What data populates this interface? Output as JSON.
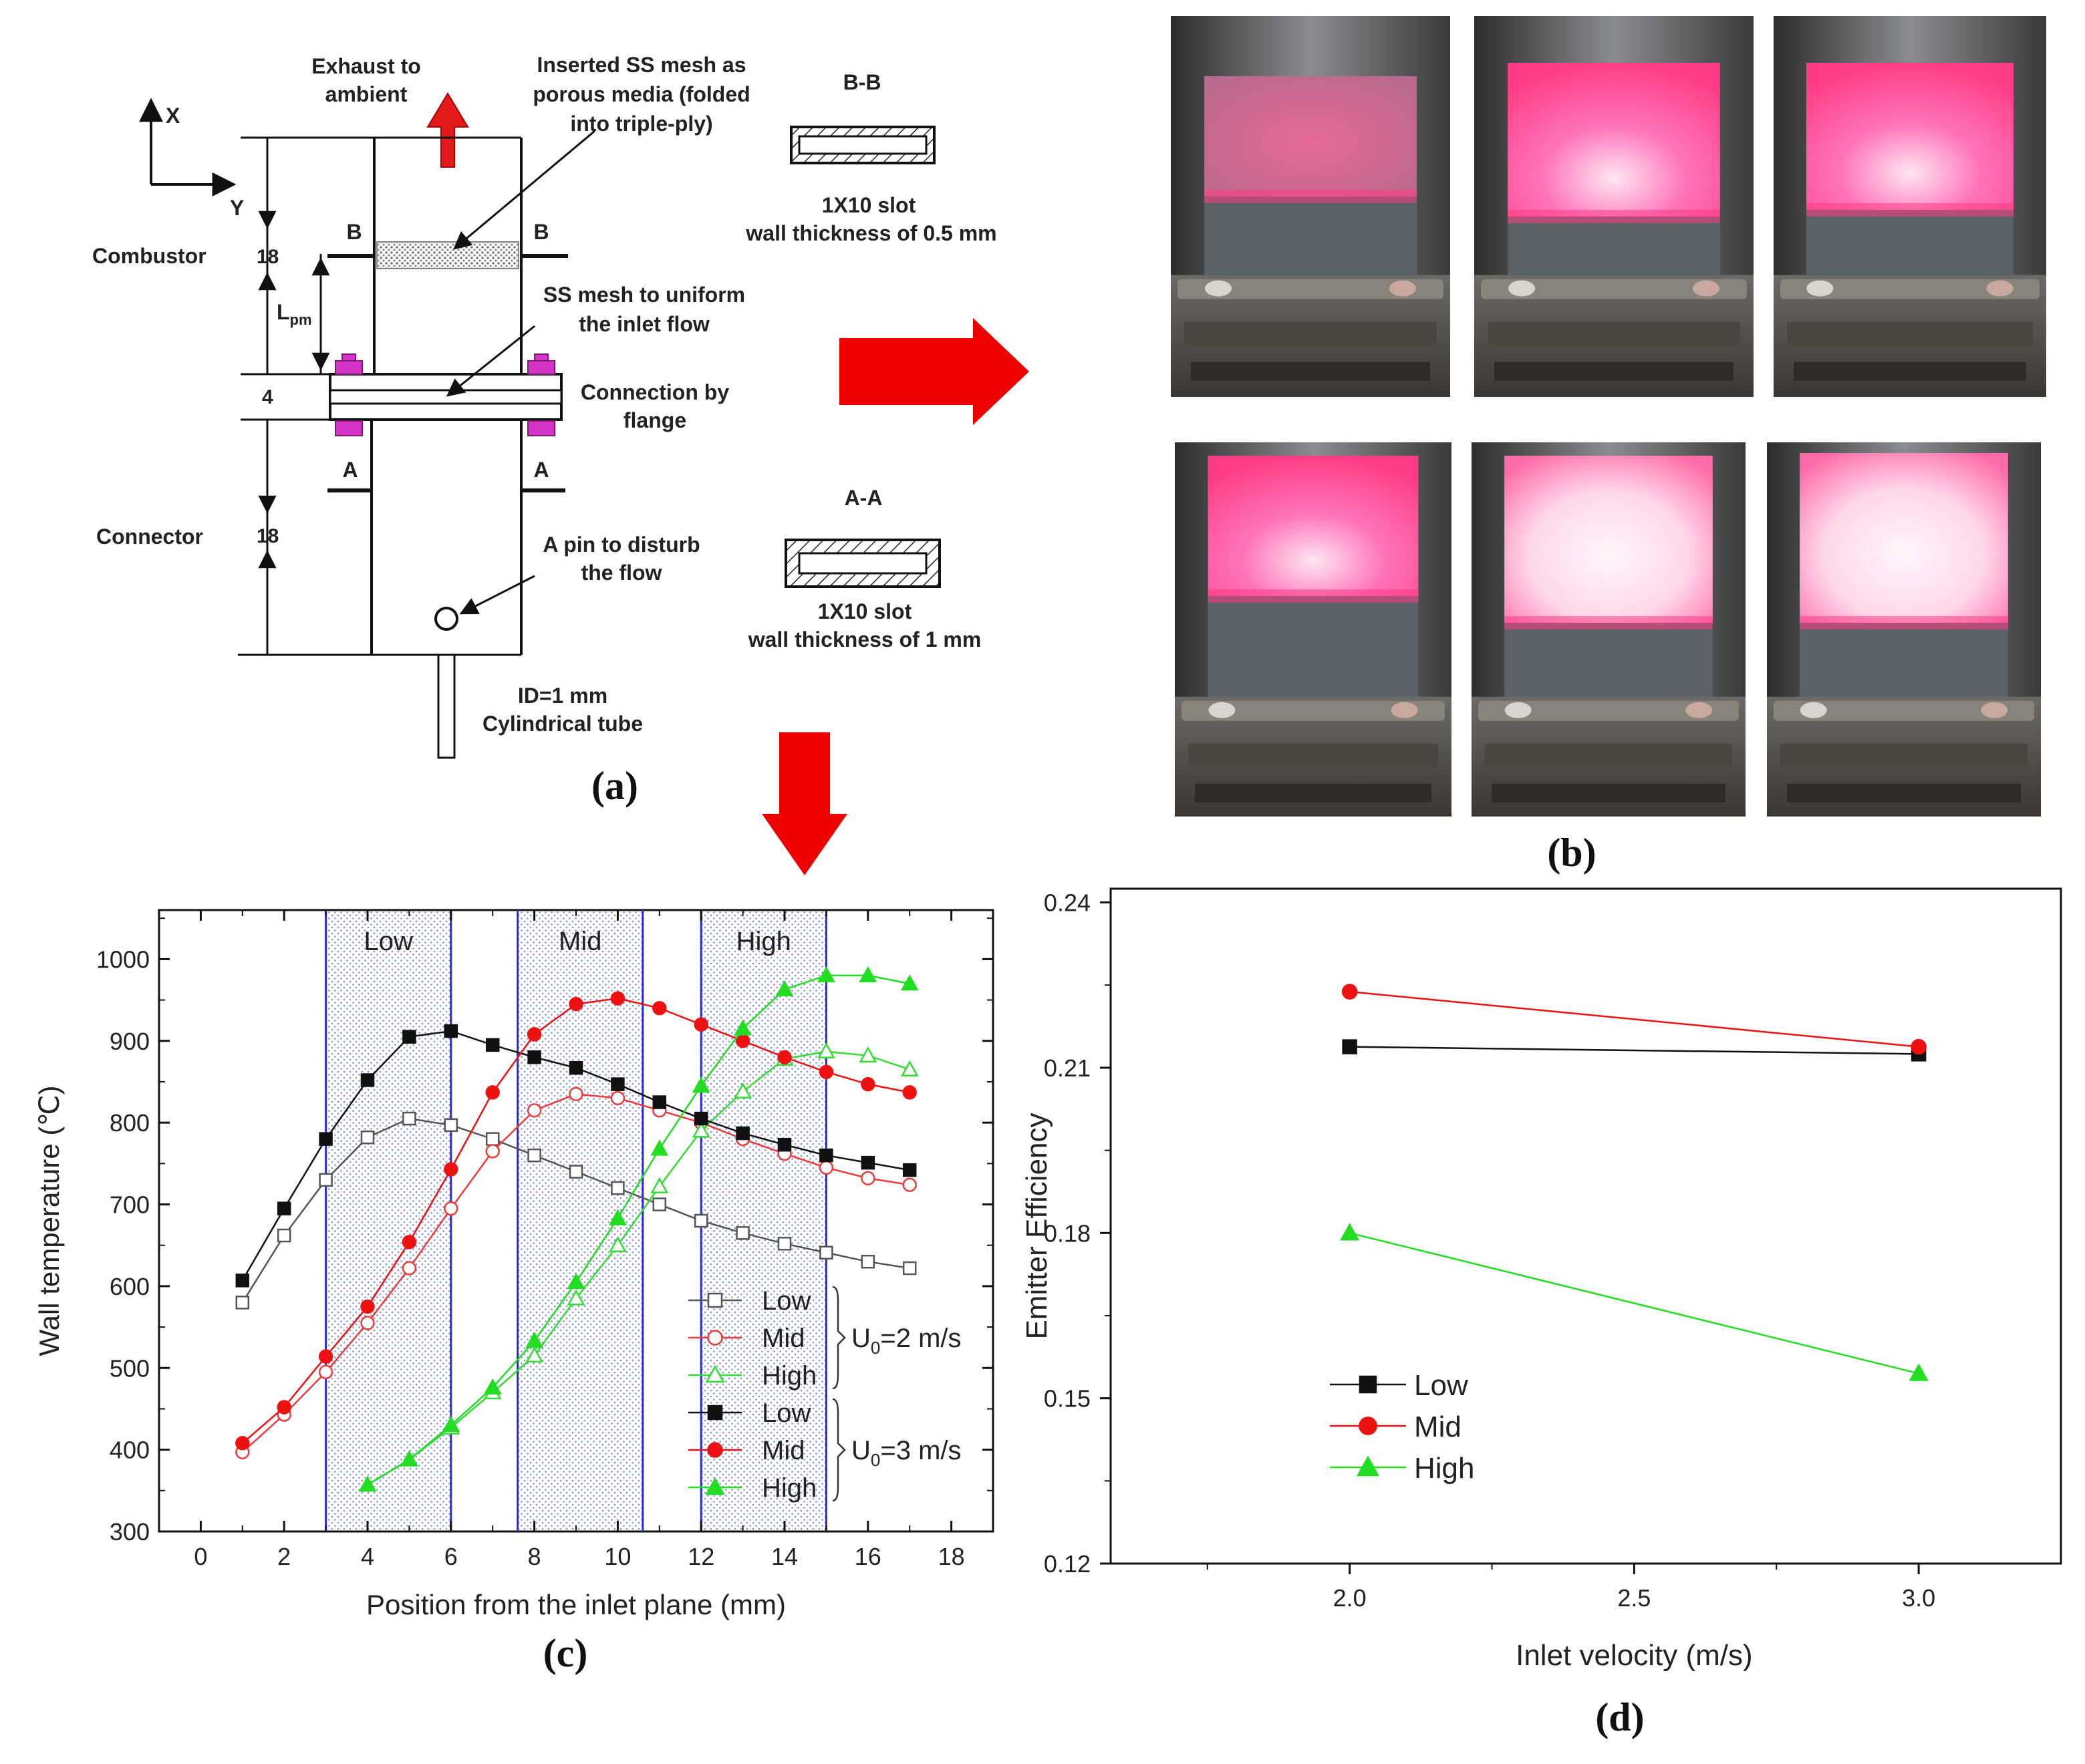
{
  "panel_a": {
    "label": "(a)",
    "axis_x": "X",
    "axis_y": "Y",
    "exhaust": [
      "Exhaust to",
      "ambient"
    ],
    "mesh_porous": [
      "Inserted SS mesh as",
      "porous media  (folded",
      "into triple-ply)"
    ],
    "combustor": "Combustor",
    "combustor_len": "18",
    "lpm": "L",
    "lpm_sub": "pm",
    "mesh_uniform": [
      "SS mesh to uniform",
      "the inlet flow"
    ],
    "flange_gap": "4",
    "flange": [
      "Connection by",
      "flange"
    ],
    "connector": "Connector",
    "connector_len": "18",
    "pin": [
      "A pin to disturb",
      "the flow"
    ],
    "tube": [
      "ID=1 mm",
      "Cylindrical tube"
    ],
    "sec_b": "B",
    "sec_a": "A",
    "bb_title": "B-B",
    "bb_desc": [
      "1X10 slot",
      "wall thickness of 0.5 mm"
    ],
    "aa_title": "A-A",
    "aa_desc": [
      "1X10 slot",
      "wall thickness of 1 mm"
    ]
  },
  "panel_b": {
    "label": "(b)"
  },
  "panel_c_label": "(c)",
  "panel_d_label": "(d)",
  "chart_data": [
    {
      "id": "c",
      "type": "line",
      "xlabel": "Position from the inlet plane (mm)",
      "ylabel": "Wall temperature (℃)",
      "xlim": [
        -1,
        19
      ],
      "ylim": [
        300,
        1060
      ],
      "xticks": [
        "0",
        "2",
        "4",
        "6",
        "8",
        "10",
        "12",
        "14",
        "16",
        "18"
      ],
      "yticks": [
        "300",
        "400",
        "500",
        "600",
        "700",
        "800",
        "900",
        "1000"
      ],
      "regions": [
        {
          "label": "Low",
          "x0": 3.0,
          "x1": 6.0
        },
        {
          "label": "Mid",
          "x0": 7.6,
          "x1": 10.6
        },
        {
          "label": "High",
          "x0": 12.0,
          "x1": 15.0
        }
      ],
      "legend_groups": [
        {
          "label": "U",
          "sub": "0",
          "suffix": "=2 m/s"
        },
        {
          "label": "U",
          "sub": "0",
          "suffix": "=3 m/s"
        }
      ],
      "series": [
        {
          "name": "Low",
          "group": "U0=2 m/s",
          "marker": "square-open",
          "color": "#555555",
          "x": [
            1,
            2,
            3,
            4,
            5,
            6,
            7,
            8,
            9,
            10,
            11,
            12,
            13,
            14,
            15,
            16,
            17
          ],
          "y": [
            580,
            662,
            730,
            782,
            805,
            797,
            780,
            760,
            740,
            720,
            700,
            680,
            665,
            652,
            641,
            630,
            622
          ]
        },
        {
          "name": "Mid",
          "group": "U0=2 m/s",
          "marker": "circle-open",
          "color": "#ef3b3b",
          "x": [
            1,
            2,
            3,
            4,
            5,
            6,
            7,
            8,
            9,
            10,
            11,
            12,
            13,
            14,
            15,
            16,
            17
          ],
          "y": [
            397,
            443,
            495,
            555,
            622,
            695,
            765,
            815,
            835,
            830,
            815,
            800,
            780,
            762,
            745,
            732,
            724
          ]
        },
        {
          "name": "High",
          "group": "U0=2 m/s",
          "marker": "triangle-open",
          "color": "#33dd33",
          "x": [
            4,
            5,
            6,
            7,
            8,
            9,
            10,
            11,
            12,
            13,
            14,
            15,
            16,
            17
          ],
          "y": [
            357,
            388,
            427,
            470,
            515,
            585,
            650,
            722,
            790,
            838,
            878,
            887,
            882,
            865
          ]
        },
        {
          "name": "Low",
          "group": "U0=3 m/s",
          "marker": "square-filled",
          "color": "#111111",
          "x": [
            1,
            2,
            3,
            4,
            5,
            6,
            7,
            8,
            9,
            10,
            11,
            12,
            13,
            14,
            15,
            16,
            17
          ],
          "y": [
            607,
            695,
            780,
            852,
            905,
            912,
            895,
            880,
            867,
            847,
            825,
            805,
            787,
            773,
            760,
            751,
            742
          ]
        },
        {
          "name": "Mid",
          "group": "U0=3 m/s",
          "marker": "circle-filled",
          "color": "#ee1111",
          "x": [
            1,
            2,
            3,
            4,
            5,
            6,
            7,
            8,
            9,
            10,
            11,
            12,
            13,
            14,
            15,
            16,
            17
          ],
          "y": [
            408,
            452,
            514,
            575,
            654,
            743,
            837,
            908,
            945,
            952,
            940,
            920,
            900,
            880,
            862,
            847,
            837
          ]
        },
        {
          "name": "High",
          "group": "U0=3 m/s",
          "marker": "triangle-filled",
          "color": "#22dd22",
          "x": [
            4,
            5,
            6,
            7,
            8,
            9,
            10,
            11,
            12,
            13,
            14,
            15,
            16,
            17
          ],
          "y": [
            357,
            388,
            430,
            476,
            533,
            605,
            683,
            768,
            845,
            915,
            963,
            980,
            980,
            970
          ]
        }
      ]
    },
    {
      "id": "d",
      "type": "line",
      "xlabel": "Inlet velocity (m/s)",
      "ylabel": "Emitter Efficiency",
      "xlim": [
        1.58,
        3.25
      ],
      "ylim": [
        0.12,
        0.2425
      ],
      "xticks": [
        "2.0",
        "2.5",
        "3.0"
      ],
      "yticks": [
        "0.12",
        "0.15",
        "0.18",
        "0.21",
        "0.24"
      ],
      "series": [
        {
          "name": "Low",
          "marker": "square-filled",
          "color": "#111111",
          "x": [
            2.0,
            3.0
          ],
          "y": [
            0.2138,
            0.2125
          ]
        },
        {
          "name": "Mid",
          "marker": "circle-filled",
          "color": "#ee1111",
          "x": [
            2.0,
            3.0
          ],
          "y": [
            0.2238,
            0.2138
          ]
        },
        {
          "name": "High",
          "marker": "triangle-filled",
          "color": "#22dd22",
          "x": [
            2.0,
            3.0
          ],
          "y": [
            0.18,
            0.1545
          ]
        }
      ]
    }
  ],
  "colors": {
    "arrow": "#ee0000",
    "blue_region": "#2a2ae0",
    "glow": "#ff3c86"
  }
}
